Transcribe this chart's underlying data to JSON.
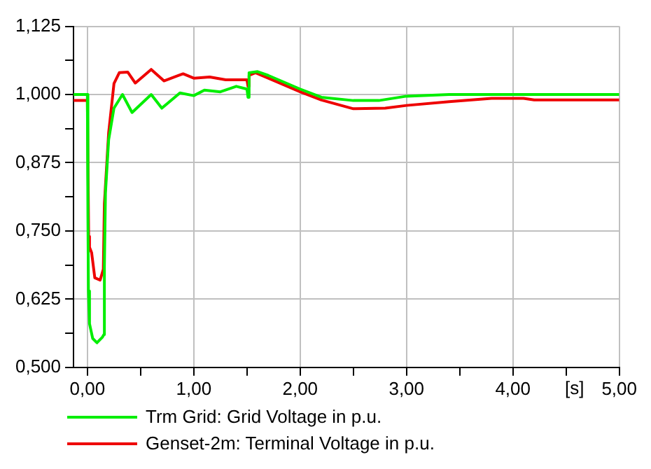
{
  "chart_data": {
    "type": "line",
    "xlabel": "[s]",
    "xlim": [
      -0.13,
      5
    ],
    "xticks": [
      {
        "value": 0,
        "label": "0,00"
      },
      {
        "value": 0.5,
        "label": null
      },
      {
        "value": 1,
        "label": "1,00"
      },
      {
        "value": 1.5,
        "label": null
      },
      {
        "value": 2,
        "label": "2,00"
      },
      {
        "value": 2.5,
        "label": null
      },
      {
        "value": 3,
        "label": "3,00"
      },
      {
        "value": 3.5,
        "label": null
      },
      {
        "value": 4,
        "label": "4,00"
      },
      {
        "value": 4.5,
        "label": null
      },
      {
        "value": 5,
        "label": "5,00"
      }
    ],
    "ylim": [
      0.5,
      1.125
    ],
    "yticks": [
      {
        "value": 0.5,
        "label": "0,500"
      },
      {
        "value": 0.5625,
        "label": null
      },
      {
        "value": 0.625,
        "label": "0,625"
      },
      {
        "value": 0.6875,
        "label": null
      },
      {
        "value": 0.75,
        "label": "0,750"
      },
      {
        "value": 0.8125,
        "label": null
      },
      {
        "value": 0.875,
        "label": "0,875"
      },
      {
        "value": 0.9375,
        "label": null
      },
      {
        "value": 1,
        "label": "1,000"
      },
      {
        "value": 1.0625,
        "label": null
      },
      {
        "value": 1.125,
        "label": "1,125"
      }
    ],
    "grid": true,
    "legend": "bottom",
    "marker": "none",
    "line_style": "solid",
    "series": [
      {
        "name": "Trm Grid: Grid Voltage in p.u.",
        "color": "#00ee00",
        "x": [
          -0.13,
          0,
          0.005,
          0.01,
          0.02,
          0.05,
          0.09,
          0.14,
          0.155,
          0.16,
          0.17,
          0.2,
          0.25,
          0.33,
          0.42,
          0.6,
          0.7,
          0.87,
          1.0,
          1.1,
          1.25,
          1.4,
          1.5,
          1.51,
          1.52,
          1.6,
          1.7,
          2.0,
          2.2,
          2.5,
          2.74,
          3.0,
          3.4,
          4.0,
          5.0
        ],
        "values": [
          1.0,
          1.0,
          0.78,
          0.64,
          0.58,
          0.553,
          0.545,
          0.555,
          0.56,
          0.684,
          0.82,
          0.917,
          0.975,
          1.0,
          0.967,
          1.0,
          0.975,
          1.003,
          0.998,
          1.008,
          1.005,
          1.015,
          1.01,
          0.995,
          1.04,
          1.042,
          1.035,
          1.01,
          0.995,
          0.989,
          0.989,
          0.997,
          1.0,
          1.0,
          1.0
        ]
      },
      {
        "name": "Genset-2m: Terminal Voltage in p.u.",
        "color": "#ee0000",
        "x": [
          -0.13,
          0,
          0.012,
          0.02,
          0.04,
          0.07,
          0.12,
          0.15,
          0.16,
          0.2,
          0.25,
          0.3,
          0.38,
          0.45,
          0.6,
          0.72,
          0.9,
          1.0,
          1.15,
          1.3,
          1.5,
          1.51,
          1.52,
          1.58,
          1.7,
          2.0,
          2.2,
          2.5,
          2.8,
          3.0,
          3.4,
          3.8,
          4.1,
          4.2,
          5.0
        ],
        "values": [
          0.989,
          0.989,
          0.74,
          0.72,
          0.71,
          0.664,
          0.66,
          0.68,
          0.8,
          0.93,
          1.02,
          1.04,
          1.041,
          1.021,
          1.046,
          1.025,
          1.038,
          1.03,
          1.032,
          1.027,
          1.027,
          1.015,
          1.035,
          1.04,
          1.03,
          1.005,
          0.99,
          0.974,
          0.975,
          0.98,
          0.987,
          0.993,
          0.993,
          0.99,
          0.99
        ]
      }
    ]
  }
}
